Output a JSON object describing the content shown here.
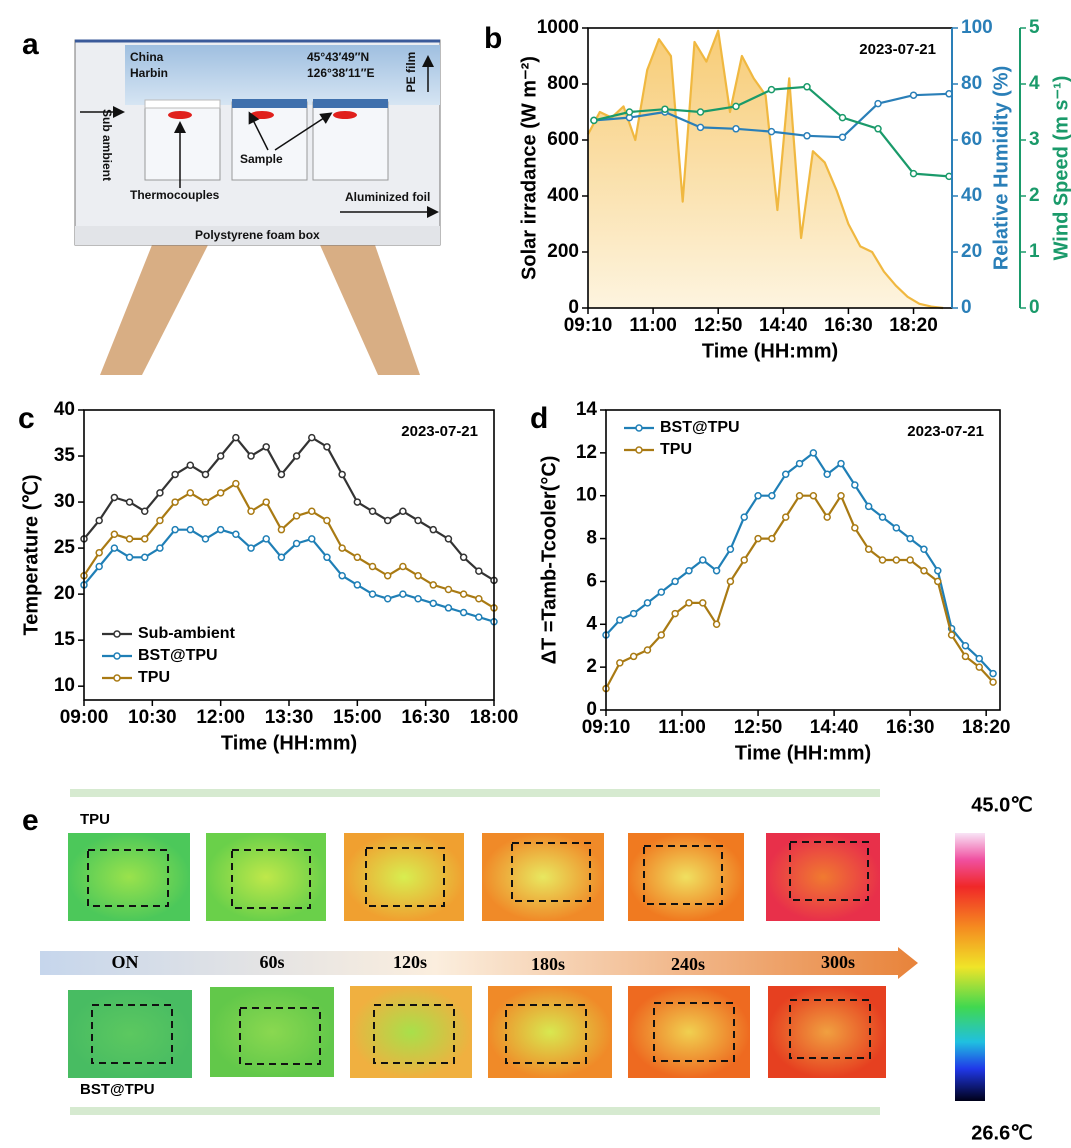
{
  "panel_labels": [
    "a",
    "b",
    "c",
    "d",
    "e"
  ],
  "diagram_a": {
    "location": [
      "China",
      "Harbin"
    ],
    "coordinates": [
      "45°43′49″N",
      "126°38′11″E"
    ],
    "labels": {
      "pe_film": "PE film",
      "sub_ambient": "Sub ambient",
      "thermocouples": "Thermocouples",
      "sample": "Sample",
      "foil": "Aluminized foil",
      "box": "Polystyrene foam box"
    }
  },
  "chart_data": [
    {
      "type": "line",
      "annotation": "2023-07-21",
      "xlabel": "Time (HH:mm)",
      "ylabel": "Solar irradance (W m⁻²)",
      "y2label": "Relative Humidity (%)",
      "y3label": "Wind Speed (m s⁻¹)",
      "xlim": [
        "09:10",
        "19:25"
      ],
      "xticks": [
        "09:10",
        "11:00",
        "12:50",
        "14:40",
        "16:30",
        "18:20"
      ],
      "ylim": [
        0,
        1000
      ],
      "yticks": [
        0,
        200,
        400,
        600,
        800,
        1000
      ],
      "y2lim": [
        0,
        100
      ],
      "y2ticks": [
        0,
        20,
        40,
        60,
        80,
        100
      ],
      "y3lim": [
        0,
        5
      ],
      "y3ticks": [
        0,
        1,
        2,
        3,
        4,
        5
      ],
      "series": [
        {
          "color": "#f0b840",
          "area": true,
          "markers": false,
          "x": [
            "09:10",
            "09:30",
            "09:50",
            "10:10",
            "10:30",
            "10:50",
            "11:10",
            "11:30",
            "11:50",
            "12:10",
            "12:30",
            "12:50",
            "13:10",
            "13:30",
            "13:50",
            "14:10",
            "14:30",
            "14:50",
            "15:10",
            "15:30",
            "15:50",
            "16:10",
            "16:30",
            "16:50",
            "17:10",
            "17:30",
            "17:50",
            "18:10",
            "18:30",
            "18:50",
            "19:10"
          ],
          "values": [
            620,
            700,
            680,
            720,
            600,
            850,
            960,
            900,
            380,
            950,
            880,
            990,
            700,
            900,
            820,
            760,
            350,
            820,
            250,
            560,
            520,
            420,
            300,
            220,
            200,
            130,
            80,
            40,
            15,
            5,
            0
          ]
        },
        {
          "color": "#2a7fb8",
          "axis": "y2",
          "markers": true,
          "x": [
            "09:20",
            "10:20",
            "11:20",
            "12:20",
            "13:20",
            "14:20",
            "15:20",
            "16:20",
            "17:20",
            "18:20",
            "19:20"
          ],
          "values": [
            67,
            68,
            70,
            64.5,
            64,
            63,
            61.5,
            61,
            73,
            76,
            76.5
          ]
        },
        {
          "color": "#1a9a6a",
          "axis": "y3",
          "markers": true,
          "x": [
            "09:20",
            "10:20",
            "11:20",
            "12:20",
            "13:20",
            "14:20",
            "15:20",
            "16:20",
            "17:20",
            "18:20",
            "19:20"
          ],
          "values": [
            3.35,
            3.5,
            3.55,
            3.5,
            3.6,
            3.9,
            3.95,
            3.4,
            3.2,
            2.4,
            2.35
          ]
        }
      ]
    },
    {
      "type": "line",
      "annotation": "2023-07-21",
      "xlabel": "Time (HH:mm)",
      "ylabel": "Temperature (℃)",
      "xlim": [
        "09:00",
        "18:00"
      ],
      "xticks": [
        "09:00",
        "10:30",
        "12:00",
        "13:30",
        "15:00",
        "16:30",
        "18:00"
      ],
      "ylim": [
        8.5,
        40
      ],
      "yticks": [
        10,
        15,
        20,
        25,
        30,
        35,
        40
      ],
      "legend": "lower left",
      "x": [
        "09:00",
        "09:20",
        "09:40",
        "10:00",
        "10:20",
        "10:40",
        "11:00",
        "11:20",
        "11:40",
        "12:00",
        "12:20",
        "12:40",
        "13:00",
        "13:20",
        "13:40",
        "14:00",
        "14:20",
        "14:40",
        "15:00",
        "15:20",
        "15:40",
        "16:00",
        "16:20",
        "16:40",
        "17:00",
        "17:20",
        "17:40",
        "18:00"
      ],
      "series": [
        {
          "name": "Sub-ambient",
          "color": "#333333",
          "markers": true,
          "values": [
            26,
            28,
            30.5,
            30,
            29,
            31,
            33,
            34,
            33,
            35,
            37,
            35,
            36,
            33,
            35,
            37,
            36,
            33,
            30,
            29,
            28,
            29,
            28,
            27,
            26,
            24,
            22.5,
            21.5
          ]
        },
        {
          "name": "BST@TPU",
          "color": "#1f7fb6",
          "markers": true,
          "values": [
            21,
            23,
            25,
            24,
            24,
            25,
            27,
            27,
            26,
            27,
            26.5,
            25,
            26,
            24,
            25.5,
            26,
            24,
            22,
            21,
            20,
            19.5,
            20,
            19.5,
            19,
            18.5,
            18,
            17.5,
            17
          ]
        },
        {
          "name": "TPU",
          "color": "#a97a13",
          "markers": true,
          "values": [
            22,
            24.5,
            26.5,
            26,
            26,
            28,
            30,
            31,
            30,
            31,
            32,
            29,
            30,
            27,
            28.5,
            29,
            28,
            25,
            24,
            23,
            22,
            23,
            22,
            21,
            20.5,
            20,
            19.5,
            18.5
          ]
        }
      ]
    },
    {
      "type": "line",
      "annotation": "2023-07-21",
      "xlabel": "Time (HH:mm)",
      "ylabel": "ΔT =Tamb-Tcooler(°C)",
      "xlim": [
        "09:10",
        "18:40"
      ],
      "xticks": [
        "09:10",
        "11:00",
        "12:50",
        "14:40",
        "16:30",
        "18:20"
      ],
      "ylim": [
        0,
        14
      ],
      "yticks": [
        0,
        2,
        4,
        6,
        8,
        10,
        12,
        14
      ],
      "legend": "upper left",
      "x": [
        "09:10",
        "09:30",
        "09:50",
        "10:10",
        "10:30",
        "10:50",
        "11:10",
        "11:30",
        "11:50",
        "12:10",
        "12:30",
        "12:50",
        "13:10",
        "13:30",
        "13:50",
        "14:10",
        "14:30",
        "14:50",
        "15:10",
        "15:30",
        "15:50",
        "16:10",
        "16:30",
        "16:50",
        "17:10",
        "17:30",
        "17:50",
        "18:10",
        "18:30"
      ],
      "series": [
        {
          "name": "BST@TPU",
          "color": "#1f7fb6",
          "markers": true,
          "values": [
            3.5,
            4.2,
            4.5,
            5,
            5.5,
            6,
            6.5,
            7,
            6.5,
            7.5,
            9,
            10,
            10,
            11,
            11.5,
            12,
            11,
            11.5,
            10.5,
            9.5,
            9,
            8.5,
            8,
            7.5,
            6.5,
            3.8,
            3,
            2.4,
            1.7
          ]
        },
        {
          "name": "TPU",
          "color": "#a97a13",
          "markers": true,
          "values": [
            1,
            2.2,
            2.5,
            2.8,
            3.5,
            4.5,
            5,
            5,
            4,
            6,
            7,
            8,
            8,
            9,
            10,
            10,
            9,
            10,
            8.5,
            7.5,
            7,
            7,
            7,
            6.5,
            6,
            3.5,
            2.5,
            2,
            1.3
          ]
        }
      ]
    }
  ],
  "thermal_e": {
    "rows": [
      "TPU",
      "BST@TPU"
    ],
    "times": [
      "ON",
      "60s",
      "120s",
      "180s",
      "240s",
      "300s"
    ],
    "colorbar": {
      "max": "45.0℃",
      "min": "26.6℃"
    }
  }
}
